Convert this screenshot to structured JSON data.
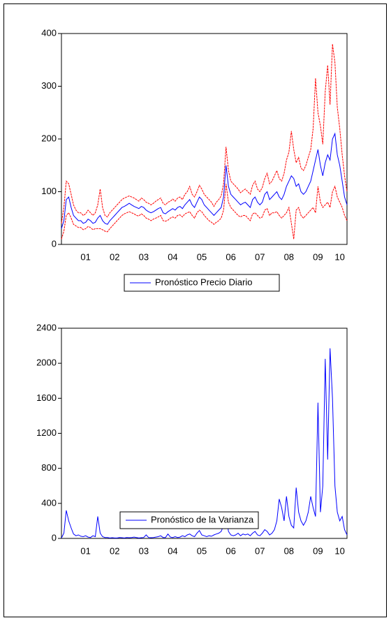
{
  "chart_data": [
    {
      "type": "line",
      "x": [
        null,
        null,
        null,
        null,
        null,
        null,
        null,
        null,
        null,
        null,
        "01",
        null,
        null,
        null,
        null,
        null,
        null,
        null,
        null,
        null,
        null,
        null,
        "02",
        null,
        null,
        null,
        null,
        null,
        null,
        null,
        null,
        null,
        null,
        null,
        "03",
        null,
        null,
        null,
        null,
        null,
        null,
        null,
        null,
        null,
        null,
        null,
        "04",
        null,
        null,
        null,
        null,
        null,
        null,
        null,
        null,
        null,
        null,
        null,
        "05",
        null,
        null,
        null,
        null,
        null,
        null,
        null,
        null,
        null,
        null,
        null,
        "06",
        null,
        null,
        null,
        null,
        null,
        null,
        null,
        null,
        null,
        null,
        null,
        "07",
        null,
        null,
        null,
        null,
        null,
        null,
        null,
        null,
        null,
        null,
        null,
        "08",
        null,
        null,
        null,
        null,
        null,
        null,
        null,
        null,
        null,
        null,
        null,
        "09",
        null,
        null,
        null,
        null,
        null,
        null,
        null,
        null,
        "10",
        null,
        null,
        null
      ],
      "ylim": [
        0,
        400
      ],
      "yticks": [
        0,
        100,
        200,
        300,
        400
      ],
      "series": [
        {
          "color": "#ff0000",
          "dash": true,
          "values": [
            40,
            70,
            120,
            115,
            95,
            75,
            65,
            60,
            60,
            55,
            58,
            65,
            60,
            55,
            60,
            75,
            105,
            70,
            55,
            52,
            60,
            65,
            70,
            75,
            80,
            85,
            88,
            90,
            92,
            90,
            88,
            85,
            82,
            88,
            85,
            80,
            78,
            75,
            78,
            82,
            85,
            88,
            78,
            75,
            80,
            82,
            86,
            82,
            88,
            90,
            85,
            95,
            100,
            110,
            95,
            90,
            100,
            112,
            105,
            95,
            90,
            85,
            80,
            72,
            80,
            85,
            92,
            115,
            185,
            140,
            120,
            115,
            110,
            105,
            98,
            102,
            105,
            100,
            95,
            112,
            120,
            105,
            100,
            108,
            125,
            135,
            115,
            120,
            130,
            140,
            125,
            120,
            135,
            160,
            175,
            215,
            180,
            155,
            165,
            145,
            140,
            150,
            165,
            180,
            220,
            315,
            250,
            225,
            190,
            290,
            340,
            265,
            380,
            345,
            260,
            220,
            170,
            130,
            100
          ]
        },
        {
          "color": "#ff0000",
          "dash": true,
          "values": [
            10,
            25,
            55,
            60,
            50,
            38,
            35,
            32,
            32,
            28,
            30,
            34,
            32,
            28,
            30,
            30,
            30,
            28,
            25,
            24,
            30,
            35,
            40,
            45,
            50,
            55,
            58,
            60,
            62,
            60,
            58,
            55,
            54,
            58,
            55,
            50,
            48,
            45,
            48,
            50,
            52,
            55,
            45,
            44,
            46,
            50,
            52,
            50,
            55,
            56,
            52,
            58,
            60,
            62,
            55,
            50,
            60,
            65,
            62,
            55,
            50,
            45,
            42,
            38,
            42,
            45,
            50,
            65,
            115,
            80,
            70,
            65,
            60,
            55,
            52,
            55,
            55,
            50,
            45,
            58,
            60,
            55,
            50,
            52,
            65,
            68,
            55,
            60,
            60,
            62,
            55,
            50,
            55,
            60,
            70,
            40,
            10,
            65,
            70,
            55,
            50,
            55,
            60,
            65,
            70,
            60,
            110,
            80,
            70,
            75,
            80,
            70,
            100,
            110,
            90,
            80,
            70,
            55,
            45
          ]
        },
        {
          "name": "Pronóstico Precio Diario",
          "color": "#0000ff",
          "values": [
            30,
            45,
            85,
            90,
            70,
            55,
            50,
            45,
            45,
            40,
            42,
            48,
            45,
            40,
            42,
            50,
            55,
            45,
            40,
            38,
            45,
            50,
            55,
            60,
            65,
            70,
            72,
            75,
            78,
            75,
            72,
            70,
            68,
            72,
            70,
            65,
            62,
            60,
            62,
            65,
            68,
            70,
            60,
            58,
            62,
            65,
            68,
            65,
            70,
            72,
            68,
            75,
            80,
            85,
            75,
            70,
            80,
            90,
            85,
            75,
            70,
            65,
            60,
            55,
            60,
            65,
            70,
            90,
            150,
            110,
            95,
            90,
            85,
            80,
            75,
            78,
            80,
            75,
            70,
            85,
            90,
            80,
            75,
            80,
            95,
            100,
            85,
            90,
            95,
            100,
            90,
            85,
            95,
            110,
            120,
            130,
            125,
            110,
            115,
            100,
            95,
            100,
            110,
            120,
            140,
            160,
            180,
            150,
            130,
            155,
            170,
            160,
            200,
            210,
            170,
            150,
            120,
            90,
            75
          ]
        }
      ]
    },
    {
      "type": "line",
      "x": [
        null,
        null,
        null,
        null,
        null,
        null,
        null,
        null,
        null,
        null,
        "01",
        null,
        null,
        null,
        null,
        null,
        null,
        null,
        null,
        null,
        null,
        null,
        "02",
        null,
        null,
        null,
        null,
        null,
        null,
        null,
        null,
        null,
        null,
        null,
        "03",
        null,
        null,
        null,
        null,
        null,
        null,
        null,
        null,
        null,
        null,
        null,
        "04",
        null,
        null,
        null,
        null,
        null,
        null,
        null,
        null,
        null,
        null,
        null,
        "05",
        null,
        null,
        null,
        null,
        null,
        null,
        null,
        null,
        null,
        null,
        null,
        "06",
        null,
        null,
        null,
        null,
        null,
        null,
        null,
        null,
        null,
        null,
        null,
        "07",
        null,
        null,
        null,
        null,
        null,
        null,
        null,
        null,
        null,
        null,
        null,
        "08",
        null,
        null,
        null,
        null,
        null,
        null,
        null,
        null,
        null,
        null,
        null,
        "09",
        null,
        null,
        null,
        null,
        null,
        null,
        null,
        null,
        "10",
        null,
        null,
        null
      ],
      "ylim": [
        0,
        2400
      ],
      "yticks": [
        0,
        400,
        800,
        1200,
        1600,
        2000,
        2400
      ],
      "series": [
        {
          "name": "Pronóstico de la Varianza",
          "color": "#0000ff",
          "values": [
            5,
            60,
            320,
            200,
            120,
            50,
            30,
            40,
            25,
            20,
            30,
            15,
            10,
            30,
            20,
            250,
            60,
            20,
            10,
            10,
            5,
            8,
            5,
            5,
            10,
            8,
            5,
            10,
            8,
            10,
            15,
            10,
            5,
            8,
            10,
            40,
            10,
            8,
            10,
            15,
            20,
            30,
            10,
            10,
            50,
            15,
            10,
            20,
            10,
            15,
            30,
            20,
            40,
            50,
            30,
            20,
            60,
            90,
            40,
            30,
            20,
            30,
            25,
            40,
            50,
            60,
            80,
            150,
            270,
            80,
            40,
            30,
            40,
            60,
            30,
            50,
            40,
            50,
            30,
            60,
            80,
            40,
            30,
            60,
            100,
            80,
            40,
            60,
            100,
            200,
            450,
            350,
            200,
            480,
            250,
            150,
            120,
            580,
            300,
            200,
            150,
            200,
            300,
            480,
            350,
            250,
            1550,
            300,
            600,
            2050,
            900,
            2170,
            1600,
            600,
            300,
            200,
            250,
            100,
            40
          ]
        }
      ]
    }
  ]
}
